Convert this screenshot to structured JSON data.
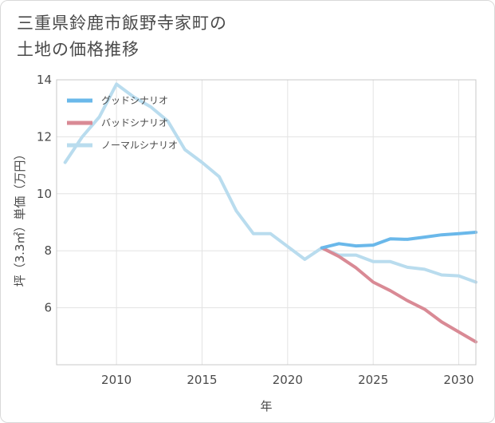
{
  "title_line1": "三重県鈴鹿市飯野寺家町の",
  "title_line2": "土地の価格推移",
  "chart_data": {
    "type": "line",
    "xlabel": "年",
    "ylabel": "坪（3.3㎡）単価（万円）",
    "xlim": [
      2006.5,
      2031
    ],
    "ylim": [
      4.0,
      14.0
    ],
    "x_ticks": [
      2010,
      2015,
      2020,
      2025,
      2030
    ],
    "y_ticks": [
      6,
      8,
      10,
      12,
      14
    ],
    "grid": true,
    "legend_position": "top-left",
    "series": [
      {
        "name": "グッドシナリオ",
        "color": "#6ab8ea",
        "x": [
          2022,
          2023,
          2024,
          2025,
          2026,
          2027,
          2028,
          2029,
          2030,
          2031
        ],
        "y": [
          8.1,
          8.25,
          8.17,
          8.2,
          8.42,
          8.4,
          8.48,
          8.56,
          8.6,
          8.65
        ]
      },
      {
        "name": "バッドシナリオ",
        "color": "#d98a95",
        "x": [
          2022,
          2023,
          2024,
          2025,
          2026,
          2027,
          2028,
          2029,
          2030,
          2031
        ],
        "y": [
          8.1,
          7.8,
          7.4,
          6.9,
          6.6,
          6.25,
          5.95,
          5.5,
          5.15,
          4.8
        ]
      },
      {
        "name": "ノーマルシナリオ",
        "color": "#b9dcee",
        "x": [
          2007,
          2008,
          2009,
          2010,
          2011,
          2012,
          2013,
          2014,
          2015,
          2016,
          2017,
          2018,
          2019,
          2020,
          2021,
          2022,
          2023,
          2024,
          2025,
          2026,
          2027,
          2028,
          2029,
          2030,
          2031
        ],
        "y": [
          11.1,
          12.0,
          12.7,
          13.85,
          13.4,
          13.05,
          12.55,
          11.55,
          11.1,
          10.6,
          9.4,
          8.6,
          8.6,
          8.15,
          7.7,
          8.1,
          7.85,
          7.85,
          7.62,
          7.62,
          7.42,
          7.35,
          7.15,
          7.12,
          6.9
        ]
      }
    ]
  }
}
